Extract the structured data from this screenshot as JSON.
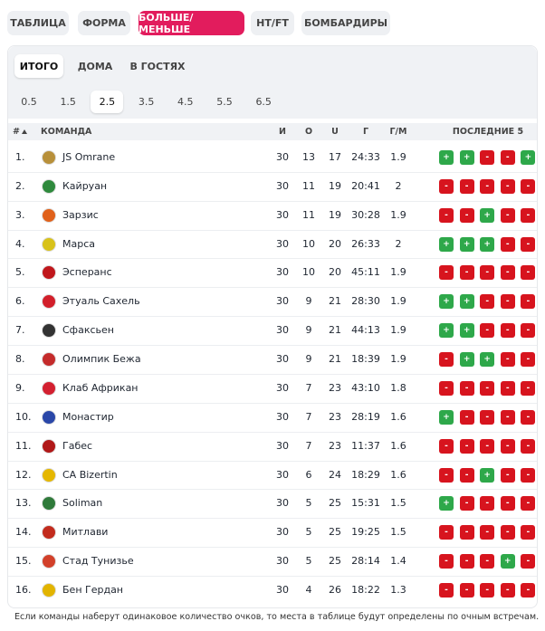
{
  "tabs": [
    "ТАБЛИЦА",
    "ФОРМА",
    "БОЛЬШЕ/МЕНЬШЕ",
    "HT/FT",
    "БОМБАРДИРЫ"
  ],
  "active_tab": 2,
  "subtabs": [
    "ИТОГО",
    "ДОМА",
    "В ГОСТЯХ"
  ],
  "active_subtab": 0,
  "thresholds": [
    "0.5",
    "1.5",
    "2.5",
    "3.5",
    "4.5",
    "5.5",
    "6.5"
  ],
  "active_threshold": 2,
  "table": {
    "columns": [
      "#",
      "КОМАНДА",
      "И",
      "О",
      "U",
      "Г",
      "Г/М",
      "ПОСЛЕДНИЕ 5"
    ],
    "rows": [
      {
        "rank": "1.",
        "team": "JS Omrane",
        "played": 30,
        "over": 13,
        "under": 17,
        "goals": "24:33",
        "gpm": 1.9,
        "last5": [
          "+",
          "+",
          "-",
          "-",
          "+"
        ]
      },
      {
        "rank": "2.",
        "team": "Кайруан",
        "played": 30,
        "over": 11,
        "under": 19,
        "goals": "20:41",
        "gpm": 2,
        "last5": [
          "-",
          "-",
          "-",
          "-",
          "-"
        ]
      },
      {
        "rank": "3.",
        "team": "Зарзис",
        "played": 30,
        "over": 11,
        "under": 19,
        "goals": "30:28",
        "gpm": 1.9,
        "last5": [
          "-",
          "-",
          "+",
          "-",
          "-"
        ]
      },
      {
        "rank": "4.",
        "team": "Марса",
        "played": 30,
        "over": 10,
        "under": 20,
        "goals": "26:33",
        "gpm": 2,
        "last5": [
          "+",
          "+",
          "+",
          "-",
          "-"
        ]
      },
      {
        "rank": "5.",
        "team": "Эсперанс",
        "played": 30,
        "over": 10,
        "under": 20,
        "goals": "45:11",
        "gpm": 1.9,
        "last5": [
          "-",
          "-",
          "-",
          "-",
          "-"
        ]
      },
      {
        "rank": "6.",
        "team": "Этуаль Сахель",
        "played": 30,
        "over": 9,
        "under": 21,
        "goals": "28:30",
        "gpm": 1.9,
        "last5": [
          "+",
          "+",
          "-",
          "-",
          "-"
        ]
      },
      {
        "rank": "7.",
        "team": "Сфаксьен",
        "played": 30,
        "over": 9,
        "under": 21,
        "goals": "44:13",
        "gpm": 1.9,
        "last5": [
          "+",
          "+",
          "-",
          "-",
          "-"
        ]
      },
      {
        "rank": "8.",
        "team": "Олимпик Бежа",
        "played": 30,
        "over": 9,
        "under": 21,
        "goals": "18:39",
        "gpm": 1.9,
        "last5": [
          "-",
          "+",
          "+",
          "-",
          "-"
        ]
      },
      {
        "rank": "9.",
        "team": "Клаб Африкан",
        "played": 30,
        "over": 7,
        "under": 23,
        "goals": "43:10",
        "gpm": 1.8,
        "last5": [
          "-",
          "-",
          "-",
          "-",
          "-"
        ]
      },
      {
        "rank": "10.",
        "team": "Монастир",
        "played": 30,
        "over": 7,
        "under": 23,
        "goals": "28:19",
        "gpm": 1.6,
        "last5": [
          "+",
          "-",
          "-",
          "-",
          "-"
        ]
      },
      {
        "rank": "11.",
        "team": "Габес",
        "played": 30,
        "over": 7,
        "under": 23,
        "goals": "11:37",
        "gpm": 1.6,
        "last5": [
          "-",
          "-",
          "-",
          "-",
          "-"
        ]
      },
      {
        "rank": "12.",
        "team": "CA Bizertin",
        "played": 30,
        "over": 6,
        "under": 24,
        "goals": "18:29",
        "gpm": 1.6,
        "last5": [
          "-",
          "-",
          "+",
          "-",
          "-"
        ]
      },
      {
        "rank": "13.",
        "team": "Soliman",
        "played": 30,
        "over": 5,
        "under": 25,
        "goals": "15:31",
        "gpm": 1.5,
        "last5": [
          "+",
          "-",
          "-",
          "-",
          "-"
        ]
      },
      {
        "rank": "14.",
        "team": "Митлави",
        "played": 30,
        "over": 5,
        "under": 25,
        "goals": "19:25",
        "gpm": 1.5,
        "last5": [
          "-",
          "-",
          "-",
          "-",
          "-"
        ]
      },
      {
        "rank": "15.",
        "team": "Стад Тунизье",
        "played": 30,
        "over": 5,
        "under": 25,
        "goals": "28:14",
        "gpm": 1.4,
        "last5": [
          "-",
          "-",
          "-",
          "+",
          "-"
        ]
      },
      {
        "rank": "16.",
        "team": "Бен Гердан",
        "played": 30,
        "over": 4,
        "under": 26,
        "goals": "18:22",
        "gpm": 1.3,
        "last5": [
          "-",
          "-",
          "-",
          "-",
          "-"
        ]
      }
    ]
  },
  "footnote": "Если команды наберут одинаковое количество очков, то места в таблице будут определены по очным встречам."
}
